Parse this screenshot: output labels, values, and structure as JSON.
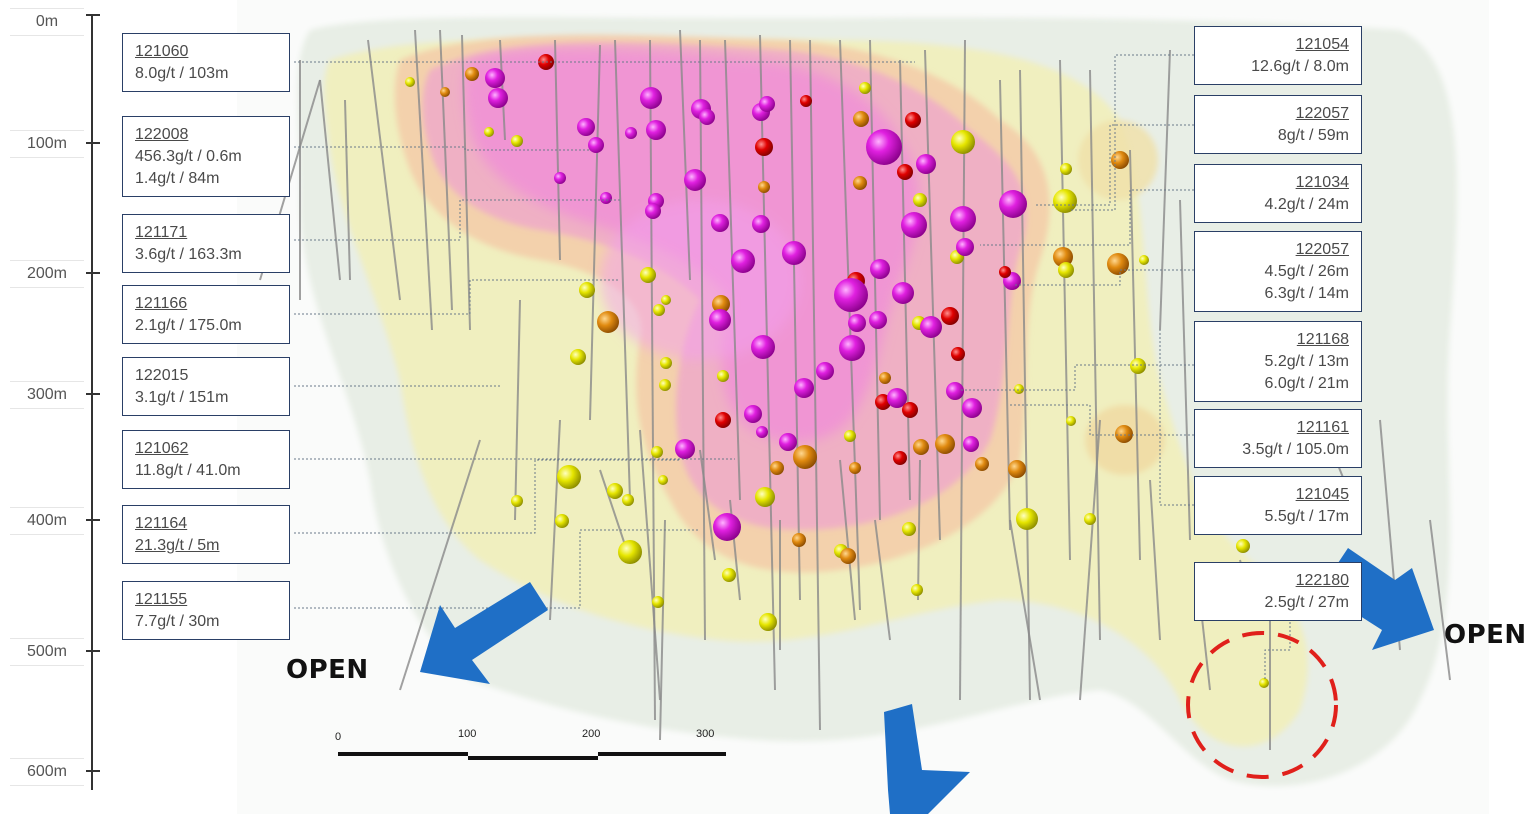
{
  "depth_axis": {
    "labels": [
      "0m",
      "100m",
      "200m",
      "300m",
      "400m",
      "500m",
      "600m"
    ]
  },
  "left_callouts": [
    {
      "hole": "121060",
      "intercepts": [
        "8.0g/t / 103m"
      ]
    },
    {
      "hole": "122008",
      "intercepts": [
        "456.3g/t / 0.6m",
        "1.4g/t / 84m"
      ]
    },
    {
      "hole": "121171",
      "intercepts": [
        "3.6g/t / 163.3m"
      ]
    },
    {
      "hole": "121166",
      "intercepts": [
        "2.1g/t / 175.0m"
      ]
    },
    {
      "hole": "122015",
      "intercepts": [
        "3.1g/t / 151m"
      ]
    },
    {
      "hole": "121062",
      "intercepts": [
        "11.8g/t / 41.0m"
      ]
    },
    {
      "hole": "121164",
      "intercepts": [
        "21.3g/t / 5m"
      ]
    },
    {
      "hole": "121155",
      "intercepts": [
        "7.7g/t / 30m"
      ]
    }
  ],
  "right_callouts": [
    {
      "hole": "121054",
      "intercepts": [
        "12.6g/t / 8.0m"
      ]
    },
    {
      "hole": "122057",
      "intercepts": [
        "8g/t / 59m"
      ]
    },
    {
      "hole": "121034",
      "intercepts": [
        "4.2g/t / 24m"
      ]
    },
    {
      "hole": "122057",
      "intercepts": [
        "4.5g/t / 26m",
        "6.3g/t / 14m"
      ]
    },
    {
      "hole": "121168",
      "intercepts": [
        "5.2g/t / 13m",
        "6.0g/t / 21m"
      ]
    },
    {
      "hole": "121161",
      "intercepts": [
        "3.5g/t / 105.0m"
      ]
    },
    {
      "hole": "121045",
      "intercepts": [
        "5.5g/t / 17m"
      ]
    },
    {
      "hole": "122180",
      "intercepts": [
        "2.5g/t / 27m"
      ]
    }
  ],
  "open_labels": {
    "left": "OPEN",
    "right": "OPEN"
  },
  "scale_bar": {
    "ticks": [
      "0",
      "100",
      "200",
      "300"
    ]
  },
  "colors": {
    "callout_border": "#2a3f66",
    "arrow": "#1f6fc6",
    "target_circle": "#e0201b",
    "grade_high": "#d600d6",
    "grade_red": "#e00000",
    "grade_orange": "#e08a10",
    "grade_yellow": "#e6e600",
    "shell_pink": "#f2a0d8",
    "shell_yellow": "#f6f0b0",
    "shell_grey": "#d8e0d8"
  }
}
